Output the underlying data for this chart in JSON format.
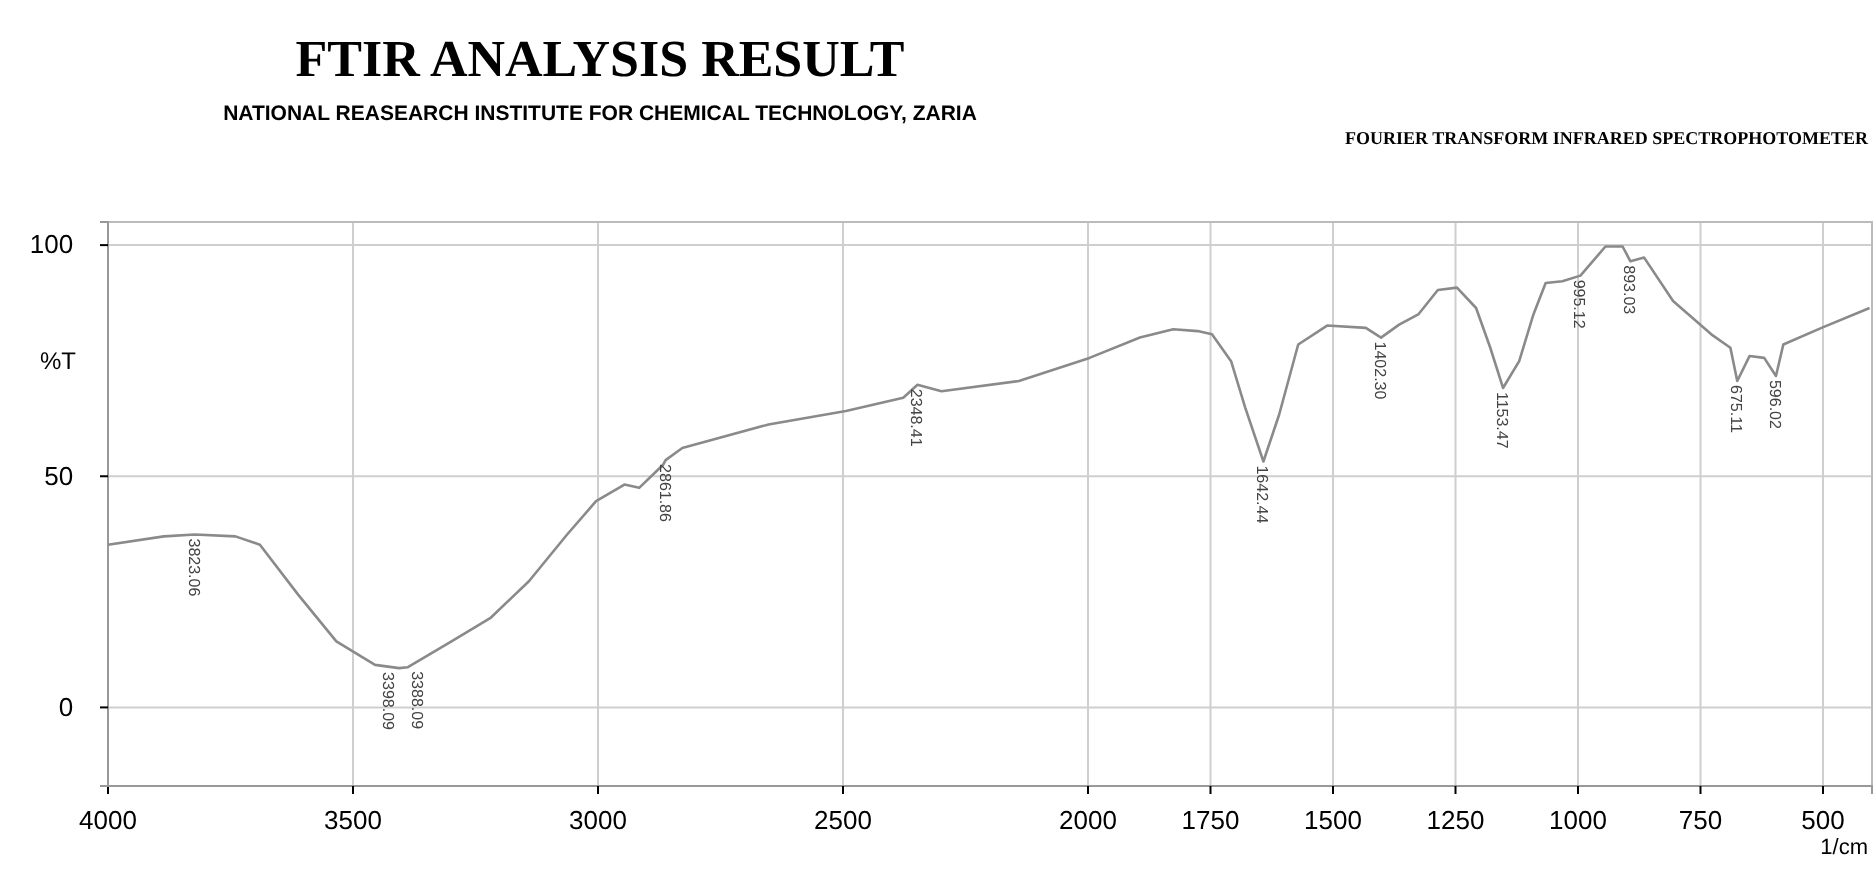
{
  "chart_data": {
    "type": "line",
    "title": "FTIR ANALYSIS RESULT",
    "subtitle": "NATIONAL REASEARCH INSTITUTE FOR CHEMICAL TECHNOLOGY, ZARIA",
    "xlabel": "1/cm",
    "ylabel": "%T",
    "x": [
      4000,
      3886,
      3823,
      3740,
      3690,
      3612,
      3534,
      3455,
      3406,
      3388,
      3299,
      3220,
      3141,
      3063,
      3004,
      2946,
      2916,
      2867,
      2862,
      2828,
      2652,
      2494,
      2377,
      2348,
      2299,
      2141,
      1997,
      1894,
      1826,
      1776,
      1747,
      1708,
      1679,
      1642,
      1610,
      1571,
      1512,
      1433,
      1402,
      1365,
      1326,
      1286,
      1247,
      1208,
      1179,
      1153,
      1120,
      1091,
      1066,
      1032,
      995,
      944,
      909,
      893,
      865,
      806,
      728,
      689,
      675,
      650,
      620,
      596,
      581,
      503,
      405
    ],
    "series": [
      {
        "color": "#8a8a8a",
        "values": [
          35.2,
          37,
          37.4,
          37,
          35.2,
          24.4,
          14.3,
          9.2,
          8.5,
          8.7,
          14.3,
          19.3,
          27.3,
          37.4,
          44.6,
          48.2,
          47.5,
          52.5,
          53.5,
          56.1,
          61.2,
          64.1,
          67,
          69.8,
          68.4,
          70.6,
          75.6,
          80,
          81.8,
          81.4,
          80.7,
          74.9,
          64.8,
          53.2,
          63.3,
          78.5,
          82.6,
          82.1,
          80,
          82.8,
          85,
          90.3,
          90.8,
          86.4,
          77.8,
          69.1,
          74.9,
          85,
          91.8,
          92.2,
          93.4,
          99.7,
          99.7,
          96.5,
          97.3,
          87.9,
          80.7,
          77.8,
          70.6,
          76,
          75.6,
          71.7,
          78.5,
          82.1,
          86.4
        ]
      }
    ],
    "xlim": [
      4000,
      400
    ],
    "ylim": [
      -17,
      105
    ],
    "xticks": [
      4000,
      3500,
      3000,
      2500,
      2000,
      1750,
      1500,
      1250,
      1000,
      750,
      500
    ],
    "yticks": [
      0,
      50,
      100
    ],
    "grid": true,
    "marker": "none",
    "line_style": "solid",
    "annotations": [
      "FOURIER TRANSFORM INFRARED SPECTROPHOTOMETER",
      {
        "text": "3823.06",
        "x": 3823,
        "y": 37.4
      },
      {
        "text": "3398.09",
        "x": 3406,
        "y": 8.5
      },
      {
        "text": "3388.09",
        "x": 3388,
        "y": 8.7
      },
      {
        "text": "2861.86",
        "x": 2862,
        "y": 53.5
      },
      {
        "text": "2348.41",
        "x": 2348,
        "y": 69.8
      },
      {
        "text": "1642.44",
        "x": 1642,
        "y": 53.2
      },
      {
        "text": "1402.30",
        "x": 1402,
        "y": 80
      },
      {
        "text": "1153.47",
        "x": 1153,
        "y": 69.1
      },
      {
        "text": "995.12",
        "x": 995,
        "y": 93.4
      },
      {
        "text": "893.03",
        "x": 893,
        "y": 96.5
      },
      {
        "text": "675.11",
        "x": 675,
        "y": 70.6
      },
      {
        "text": "596.02",
        "x": 596,
        "y": 71.7
      }
    ]
  }
}
